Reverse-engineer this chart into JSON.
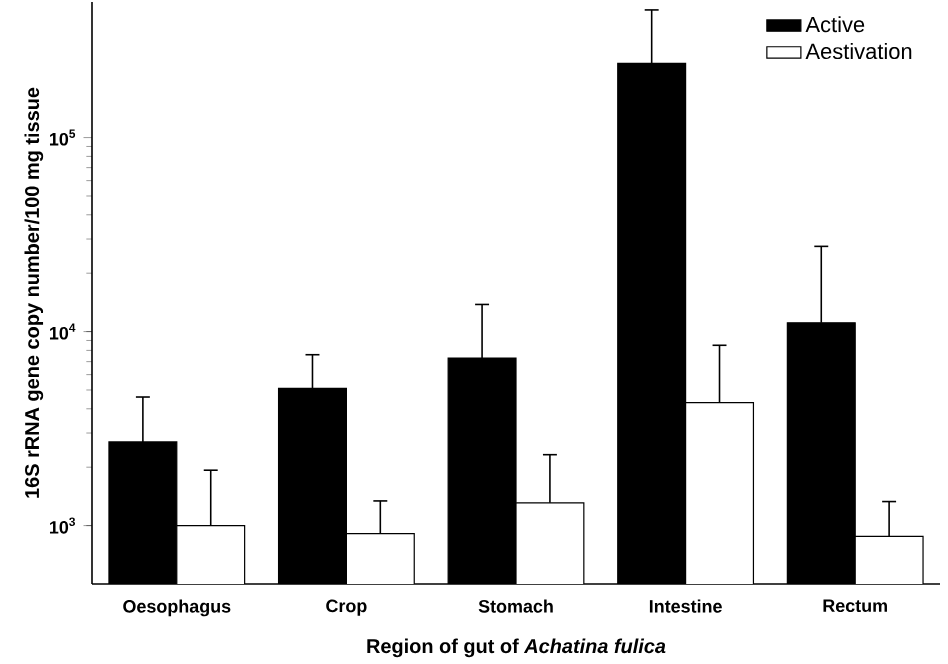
{
  "chart_data": {
    "type": "bar",
    "xlabel": "Region of gut of *Achatina fulica*",
    "ylabel": "16S rRNA gene copy number/100 mg tissue",
    "categories": [
      "Oesophagus",
      "Crop",
      "Stomach",
      "Intestine",
      "Rectum"
    ],
    "series": [
      {
        "name": "Active",
        "color": "#000000",
        "values": [
          2700,
          5100,
          7300,
          241000,
          11100
        ],
        "errors": [
          [
            2700,
            4600
          ],
          [
            5100,
            7600
          ],
          [
            7300,
            13800
          ],
          [
            241000,
            455000
          ],
          [
            11100,
            27500
          ]
        ]
      },
      {
        "name": "Aestivation",
        "color": "#ffffff",
        "values": [
          1000,
          910,
          1310,
          4300,
          880
        ],
        "errors": [
          [
            1000,
            1930
          ],
          [
            910,
            1340
          ],
          [
            1310,
            2320
          ],
          [
            4300,
            8500
          ],
          [
            880,
            1330
          ]
        ]
      }
    ],
    "log": "y",
    "ylim": [
      500,
      500000
    ],
    "yticks": [
      {
        "value": 1000,
        "label": "10$^{3}$"
      },
      {
        "value": 10000,
        "label": "10$^{4}$"
      },
      {
        "value": 100000,
        "label": "10$^{5}$"
      }
    ],
    "legend": "top right",
    "grid": false
  }
}
